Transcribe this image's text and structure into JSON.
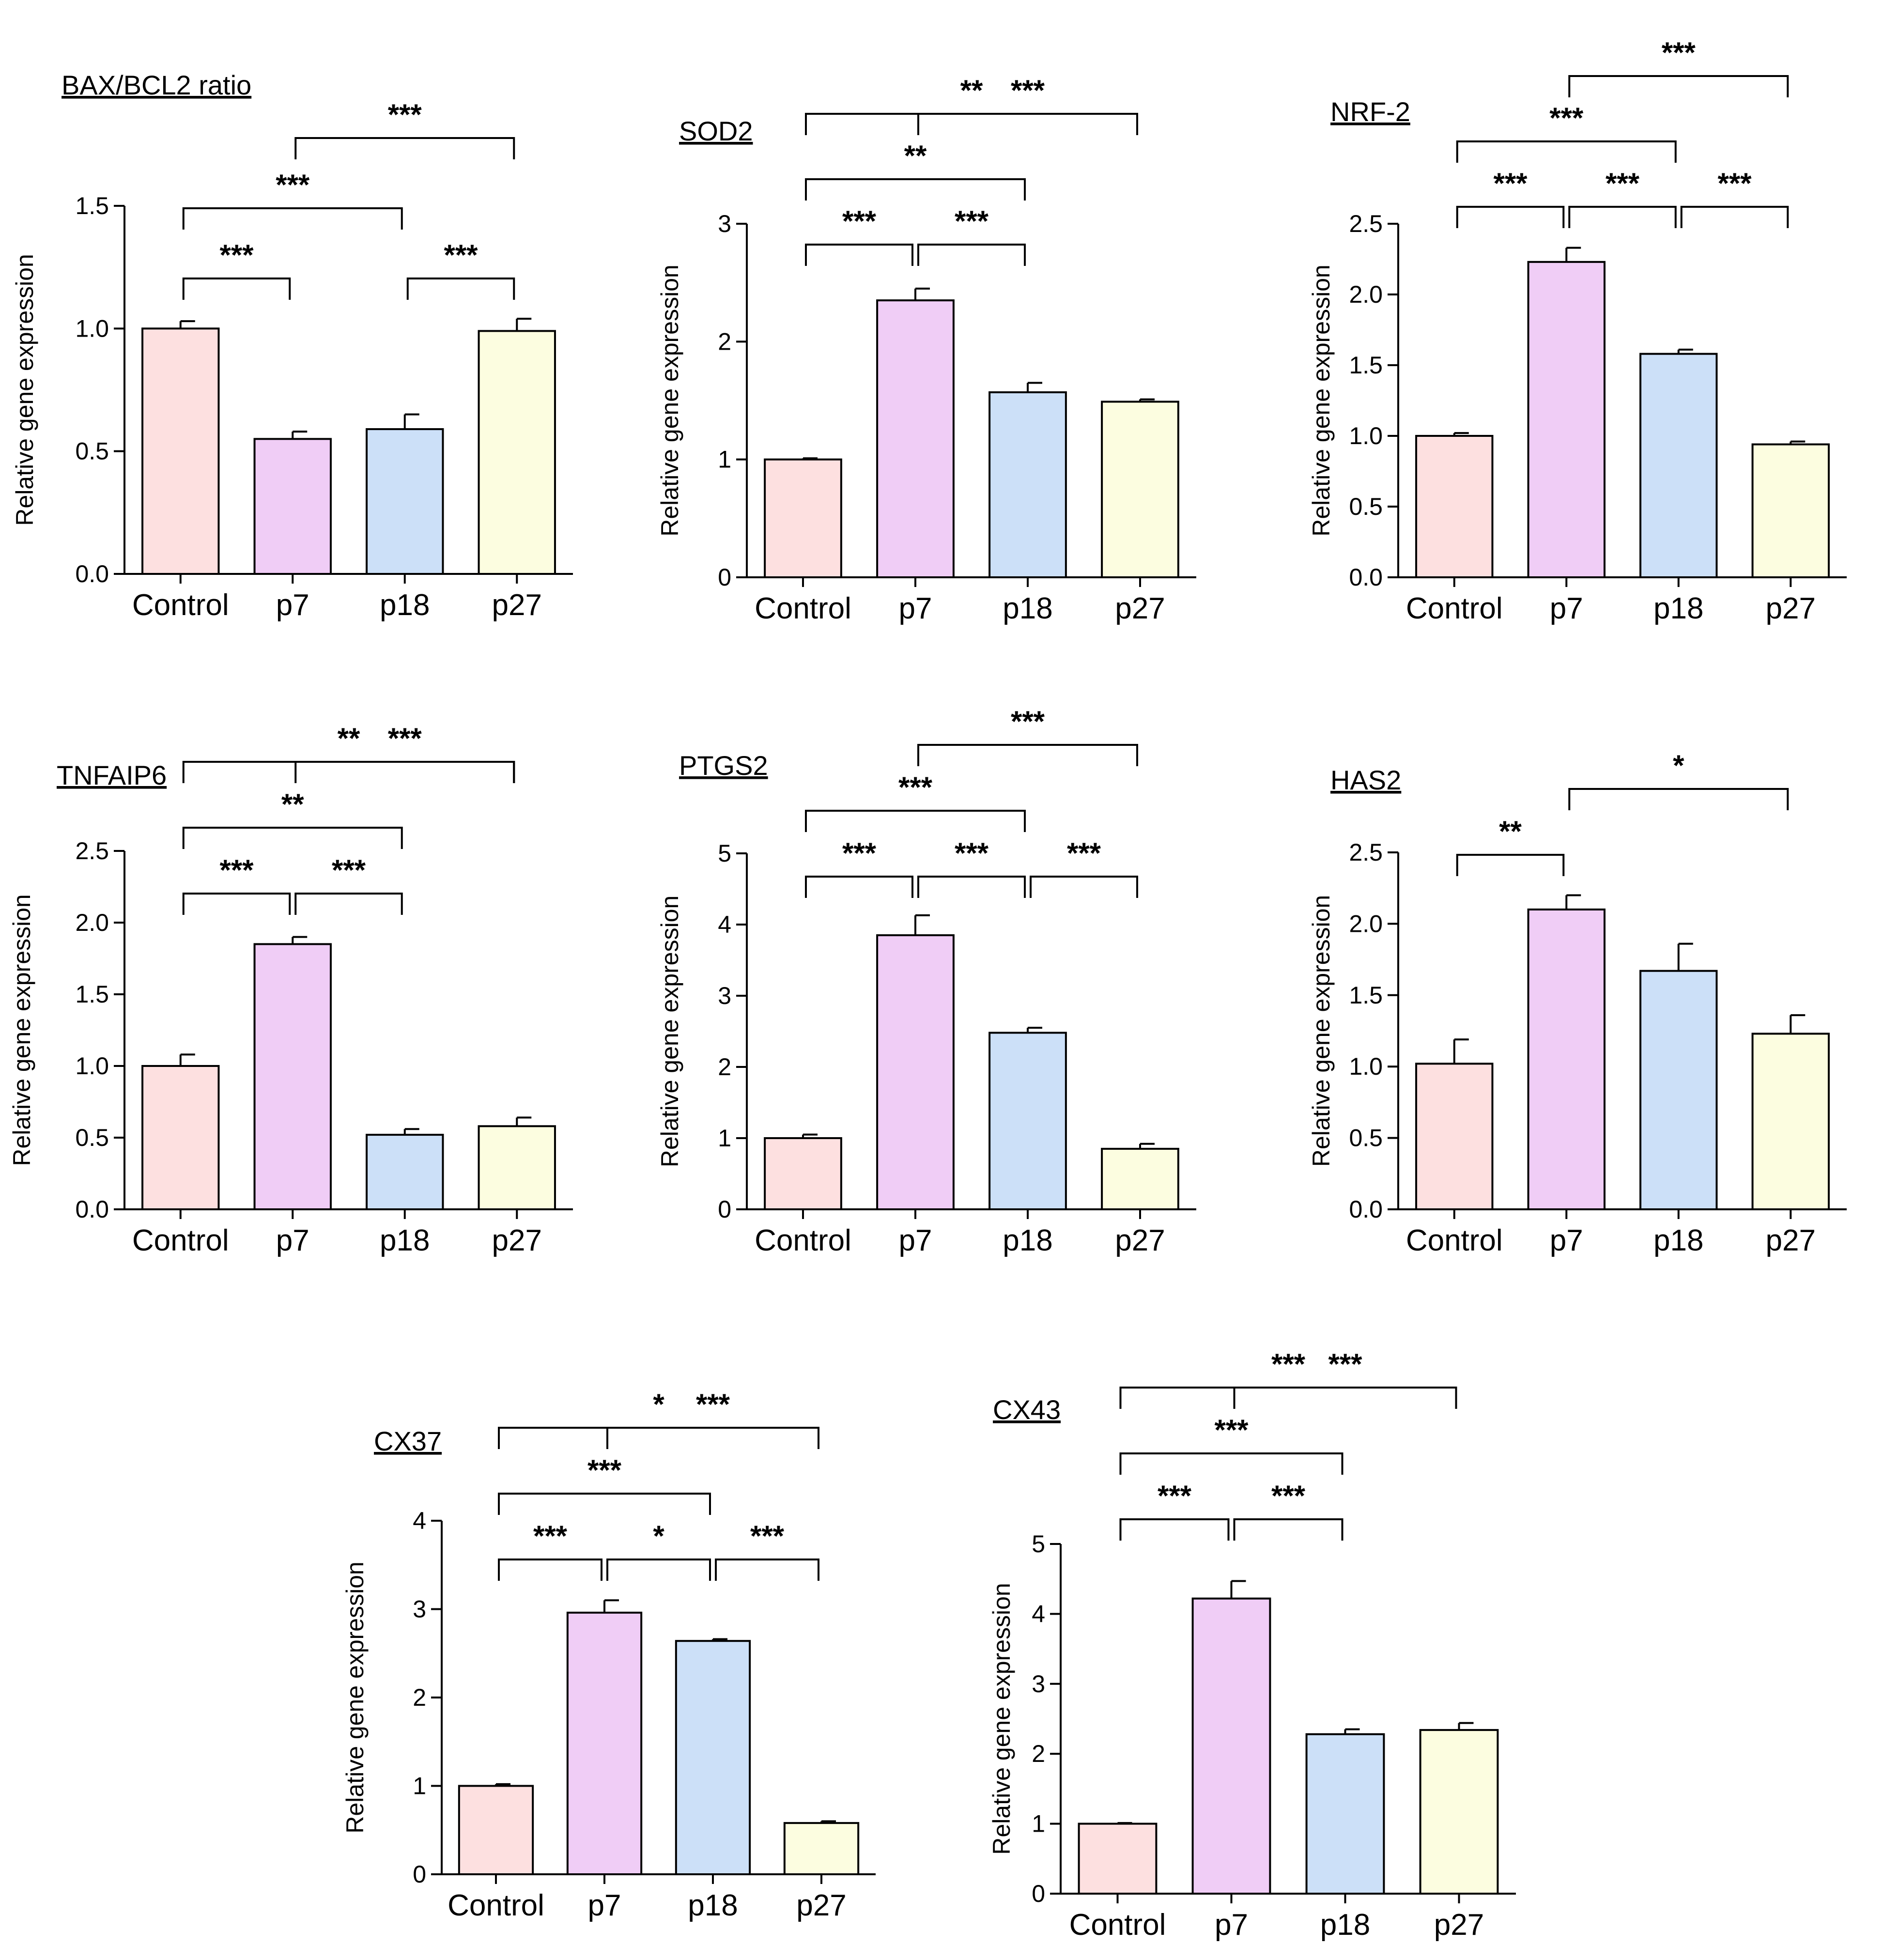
{
  "figure": {
    "description_free": true
  },
  "chart_data": [
    {
      "id": "bax-bcl2",
      "type": "bar",
      "title": "BAX/BCL2 ratio",
      "ylabel": "Relative gene expression",
      "xlabel": "",
      "categories": [
        "Control",
        "p7",
        "p18",
        "p27"
      ],
      "values": [
        1.0,
        0.55,
        0.59,
        0.99
      ],
      "errors": [
        0.03,
        0.03,
        0.06,
        0.05
      ],
      "ylim": [
        0,
        1.5
      ],
      "yticks": [
        0.0,
        0.5,
        1.0,
        1.5
      ],
      "ytick_labels": [
        "0.0",
        "0.5",
        "1.0",
        "1.5"
      ],
      "colors": [
        "#fde0e0",
        "#f0cdf6",
        "#cce0f8",
        "#fcfde0"
      ],
      "significance": [
        {
          "from": 0,
          "to": 1,
          "label": "***"
        },
        {
          "from": 2,
          "to": 3,
          "label": "***"
        },
        {
          "from": 0,
          "to": 2,
          "label": "***"
        },
        {
          "from": 1,
          "to": 3,
          "label": "***"
        }
      ]
    },
    {
      "id": "sod2",
      "type": "bar",
      "title": "SOD2",
      "ylabel": "Relative gene expression",
      "xlabel": "",
      "categories": [
        "Control",
        "p7",
        "p18",
        "p27"
      ],
      "values": [
        1.0,
        2.35,
        1.57,
        1.49
      ],
      "errors": [
        0.01,
        0.1,
        0.08,
        0.02
      ],
      "ylim": [
        0,
        3
      ],
      "yticks": [
        0,
        1,
        2,
        3
      ],
      "ytick_labels": [
        "0",
        "1",
        "2",
        "3"
      ],
      "colors": [
        "#fde0e0",
        "#f0cdf6",
        "#cce0f8",
        "#fcfde0"
      ],
      "significance": [
        {
          "from": 0,
          "to": 1,
          "label": "***"
        },
        {
          "from": 1,
          "to": 2,
          "label": "***"
        },
        {
          "from": 0,
          "to": 2,
          "label": "**"
        },
        {
          "from": 1,
          "to": 3,
          "label": "***"
        },
        {
          "from": 0,
          "to": 3,
          "label": "**"
        }
      ]
    },
    {
      "id": "nrf2",
      "type": "bar",
      "title": "NRF-2",
      "ylabel": "Relative gene expression",
      "xlabel": "",
      "categories": [
        "Control",
        "p7",
        "p18",
        "p27"
      ],
      "values": [
        1.0,
        2.23,
        1.58,
        0.94
      ],
      "errors": [
        0.02,
        0.1,
        0.03,
        0.02
      ],
      "ylim": [
        0,
        2.5
      ],
      "yticks": [
        0.0,
        0.5,
        1.0,
        1.5,
        2.0,
        2.5
      ],
      "ytick_labels": [
        "0.0",
        "0.5",
        "1.0",
        "1.5",
        "2.0",
        "2.5"
      ],
      "colors": [
        "#fde0e0",
        "#f0cdf6",
        "#cce0f8",
        "#fcfde0"
      ],
      "significance": [
        {
          "from": 0,
          "to": 1,
          "label": "***"
        },
        {
          "from": 1,
          "to": 2,
          "label": "***"
        },
        {
          "from": 2,
          "to": 3,
          "label": "***"
        },
        {
          "from": 0,
          "to": 2,
          "label": "***"
        },
        {
          "from": 1,
          "to": 3,
          "label": "***"
        }
      ]
    },
    {
      "id": "tnfaip6",
      "type": "bar",
      "title": "TNFAIP6",
      "ylabel": "Relative gene expression",
      "xlabel": "",
      "categories": [
        "Control",
        "p7",
        "p18",
        "p27"
      ],
      "values": [
        1.0,
        1.85,
        0.52,
        0.58
      ],
      "errors": [
        0.08,
        0.05,
        0.04,
        0.06
      ],
      "ylim": [
        0,
        2.5
      ],
      "yticks": [
        0.0,
        0.5,
        1.0,
        1.5,
        2.0,
        2.5
      ],
      "ytick_labels": [
        "0.0",
        "0.5",
        "1.0",
        "1.5",
        "2.0",
        "2.5"
      ],
      "colors": [
        "#fde0e0",
        "#f0cdf6",
        "#cce0f8",
        "#fcfde0"
      ],
      "significance": [
        {
          "from": 0,
          "to": 1,
          "label": "***"
        },
        {
          "from": 1,
          "to": 2,
          "label": "***"
        },
        {
          "from": 0,
          "to": 2,
          "label": "**"
        },
        {
          "from": 1,
          "to": 3,
          "label": "***"
        },
        {
          "from": 0,
          "to": 3,
          "label": "**"
        }
      ]
    },
    {
      "id": "ptgs2",
      "type": "bar",
      "title": "PTGS2",
      "ylabel": "Relative gene expression",
      "xlabel": "",
      "categories": [
        "Control",
        "p7",
        "p18",
        "p27"
      ],
      "values": [
        1.0,
        3.85,
        2.48,
        0.85
      ],
      "errors": [
        0.05,
        0.28,
        0.07,
        0.07
      ],
      "ylim": [
        0,
        5
      ],
      "yticks": [
        0,
        1,
        2,
        3,
        4,
        5
      ],
      "ytick_labels": [
        "0",
        "1",
        "2",
        "3",
        "4",
        "5"
      ],
      "colors": [
        "#fde0e0",
        "#f0cdf6",
        "#cce0f8",
        "#fcfde0"
      ],
      "significance": [
        {
          "from": 0,
          "to": 1,
          "label": "***"
        },
        {
          "from": 1,
          "to": 2,
          "label": "***"
        },
        {
          "from": 2,
          "to": 3,
          "label": "***"
        },
        {
          "from": 0,
          "to": 2,
          "label": "***"
        },
        {
          "from": 1,
          "to": 3,
          "label": "***"
        }
      ]
    },
    {
      "id": "has2",
      "type": "bar",
      "title": "HAS2",
      "ylabel": "Relative gene expression",
      "xlabel": "",
      "categories": [
        "Control",
        "p7",
        "p18",
        "p27"
      ],
      "values": [
        1.02,
        2.1,
        1.67,
        1.23
      ],
      "errors": [
        0.17,
        0.1,
        0.19,
        0.13
      ],
      "ylim": [
        0,
        2.5
      ],
      "yticks": [
        0.0,
        0.5,
        1.0,
        1.5,
        2.0,
        2.5
      ],
      "ytick_labels": [
        "0.0",
        "0.5",
        "1.0",
        "1.5",
        "2.0",
        "2.5"
      ],
      "colors": [
        "#fde0e0",
        "#f0cdf6",
        "#cce0f8",
        "#fcfde0"
      ],
      "significance": [
        {
          "from": 0,
          "to": 1,
          "label": "**"
        },
        {
          "from": 1,
          "to": 3,
          "label": "*"
        }
      ]
    },
    {
      "id": "cx37",
      "type": "bar",
      "title": "CX37",
      "ylabel": "Relative gene expression",
      "xlabel": "",
      "categories": [
        "Control",
        "p7",
        "p18",
        "p27"
      ],
      "values": [
        1.0,
        2.96,
        2.64,
        0.58
      ],
      "errors": [
        0.02,
        0.14,
        0.02,
        0.02
      ],
      "ylim": [
        0,
        4
      ],
      "yticks": [
        0,
        1,
        2,
        3,
        4
      ],
      "ytick_labels": [
        "0",
        "1",
        "2",
        "3",
        "4"
      ],
      "colors": [
        "#fde0e0",
        "#f0cdf6",
        "#cce0f8",
        "#fcfde0"
      ],
      "significance": [
        {
          "from": 0,
          "to": 1,
          "label": "***"
        },
        {
          "from": 1,
          "to": 2,
          "label": "*"
        },
        {
          "from": 2,
          "to": 3,
          "label": "***"
        },
        {
          "from": 0,
          "to": 2,
          "label": "***"
        },
        {
          "from": 1,
          "to": 3,
          "label": "***"
        },
        {
          "from": 0,
          "to": 3,
          "label": "*"
        }
      ]
    },
    {
      "id": "cx43",
      "type": "bar",
      "title": "CX43",
      "ylabel": "Relative gene expression",
      "xlabel": "",
      "categories": [
        "Control",
        "p7",
        "p18",
        "p27"
      ],
      "values": [
        1.0,
        4.22,
        2.28,
        2.34
      ],
      "errors": [
        0.01,
        0.25,
        0.07,
        0.1
      ],
      "ylim": [
        0,
        5
      ],
      "yticks": [
        0,
        1,
        2,
        3,
        4,
        5
      ],
      "ytick_labels": [
        "0",
        "1",
        "2",
        "3",
        "4",
        "5"
      ],
      "colors": [
        "#fde0e0",
        "#f0cdf6",
        "#cce0f8",
        "#fcfde0"
      ],
      "significance": [
        {
          "from": 0,
          "to": 1,
          "label": "***"
        },
        {
          "from": 1,
          "to": 2,
          "label": "***"
        },
        {
          "from": 0,
          "to": 2,
          "label": "***"
        },
        {
          "from": 1,
          "to": 3,
          "label": "***"
        },
        {
          "from": 0,
          "to": 3,
          "label": "***"
        }
      ]
    }
  ]
}
